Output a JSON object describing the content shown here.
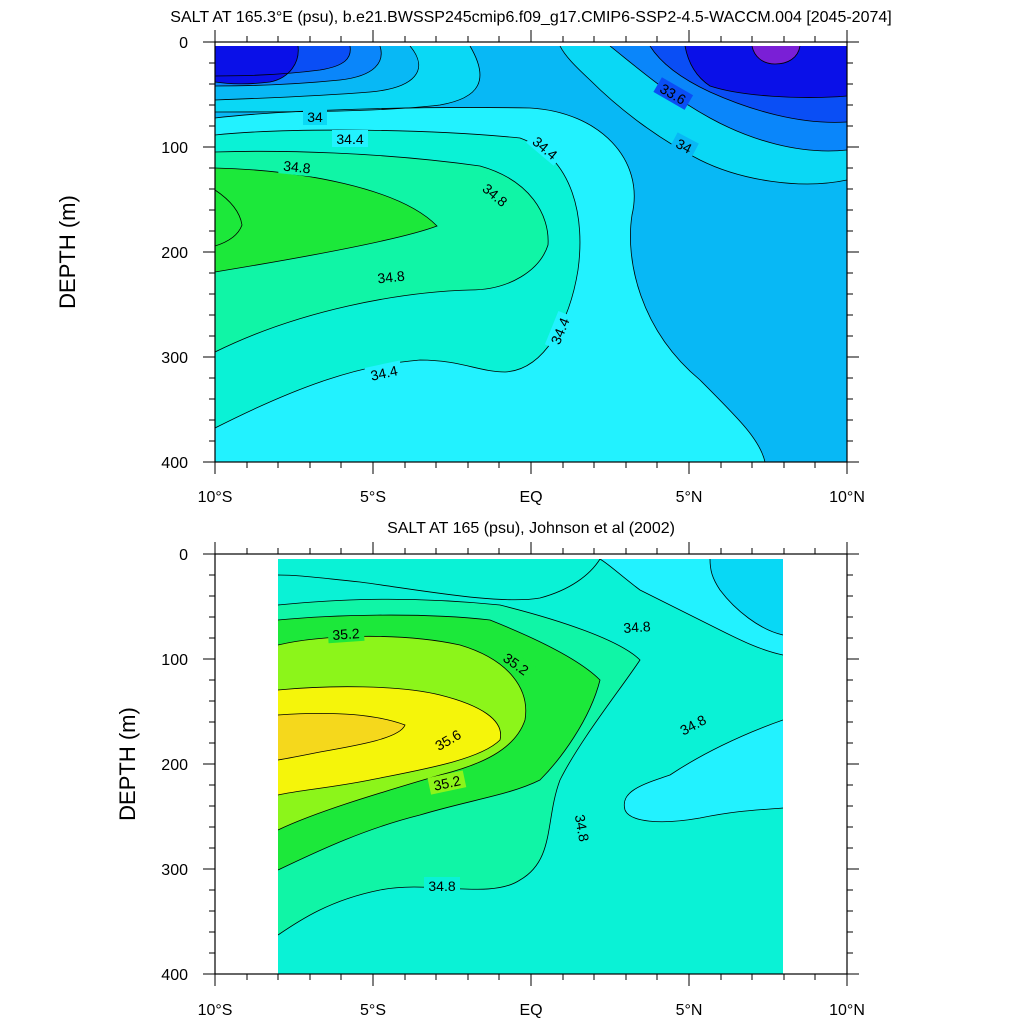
{
  "chart_data": [
    {
      "type": "contour",
      "title": "SALT AT 165.3°E (psu), b.e21.BWSSP245cmip6.f09_g17.CMIP6-SSP2-4.5-WACCM.004 [2045-2074]",
      "ylabel": "DEPTH (m)",
      "xlabel": "",
      "xlim": [
        -10,
        10
      ],
      "ylim": [
        0,
        400
      ],
      "y_inverted": true,
      "x_ticks": [
        "10°S",
        "5°S",
        "EQ",
        "5°N",
        "10°N"
      ],
      "y_ticks": [
        "0",
        "100",
        "200",
        "300",
        "400"
      ],
      "contour_interval": 0.2,
      "contour_labels": [
        "34",
        "34.4",
        "34.8",
        "34.8",
        "34.8",
        "34.4",
        "34.4",
        "33.6",
        "34",
        "34.4"
      ],
      "data_extent_x": [
        -10,
        10
      ],
      "salinity_range_psu": [
        33.2,
        35.0
      ],
      "fill_colors": [
        "#7a1fd6",
        "#0a10e8",
        "#0a4ef5",
        "#0a86fa",
        "#08b8f5",
        "#0ad8f5",
        "#22f2ff",
        "#0af2d6",
        "#10f5a6",
        "#1ce83a"
      ]
    },
    {
      "type": "contour",
      "title": "SALT AT 165 (psu), Johnson et al (2002)",
      "ylabel": "DEPTH (m)",
      "xlabel": "",
      "xlim": [
        -10,
        10
      ],
      "ylim": [
        0,
        400
      ],
      "y_inverted": true,
      "x_ticks": [
        "10°S",
        "5°S",
        "EQ",
        "5°N",
        "10°N"
      ],
      "y_ticks": [
        "0",
        "100",
        "200",
        "300",
        "400"
      ],
      "contour_interval": 0.2,
      "contour_labels": [
        "35.2",
        "35.2",
        "35.6",
        "35.2",
        "34.8",
        "34.8",
        "34.8",
        "34.8"
      ],
      "data_extent_x": [
        -8,
        8
      ],
      "salinity_range_psu": [
        34.4,
        35.8
      ],
      "fill_colors": [
        "#08d8f5",
        "#22f2ff",
        "#0af2d6",
        "#10f5a6",
        "#1ce83a",
        "#8cf51a",
        "#f5f50a",
        "#f5d81c"
      ]
    }
  ]
}
